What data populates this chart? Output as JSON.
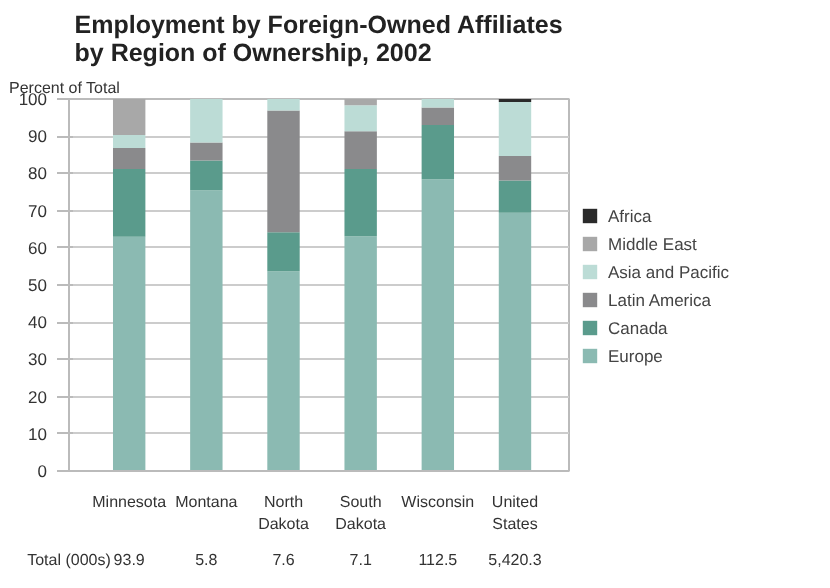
{
  "chart_data": {
    "type": "bar",
    "stacked": true,
    "title": "Employment by Foreign-Owned Affiliates by Region of Ownership, 2002",
    "ylabel": "Percent of Total",
    "categories": [
      "Minnesota",
      "Montana",
      "North Dakota",
      "South Dakota",
      "Wisconsin",
      "United States"
    ],
    "series": [
      {
        "name": "Europe",
        "color": "#8bbab2",
        "values": [
          63.0,
          75.5,
          53.7,
          63.1,
          78.4,
          69.4
        ]
      },
      {
        "name": "Canada",
        "color": "#5a9b8c",
        "values": [
          18.2,
          8.0,
          10.5,
          18.1,
          14.6,
          8.7
        ]
      },
      {
        "name": "Latin America",
        "color": "#8a8a8c",
        "values": [
          5.6,
          4.8,
          32.7,
          10.1,
          4.7,
          6.6
        ]
      },
      {
        "name": "Asia and Pacific",
        "color": "#bcdcd6",
        "values": [
          3.5,
          11.7,
          3.1,
          7.0,
          2.3,
          14.5
        ]
      },
      {
        "name": "Middle East",
        "color": "#a8a8a8",
        "values": [
          9.7,
          0,
          0,
          1.7,
          0,
          null
        ]
      },
      {
        "name": "Africa",
        "color": "#2a2a2a",
        "values": [
          0,
          0,
          0,
          0,
          0,
          0.8
        ]
      }
    ],
    "ylim": [
      0,
      100
    ],
    "yticks": [
      0,
      10,
      20,
      30,
      40,
      50,
      60,
      70,
      80,
      90,
      100
    ],
    "grid": "y",
    "legend": "right",
    "annotations": [
      "Total (000s)",
      "93.9",
      "5.8",
      "7.6",
      "7.1",
      "112.5",
      "5,420.3"
    ]
  }
}
